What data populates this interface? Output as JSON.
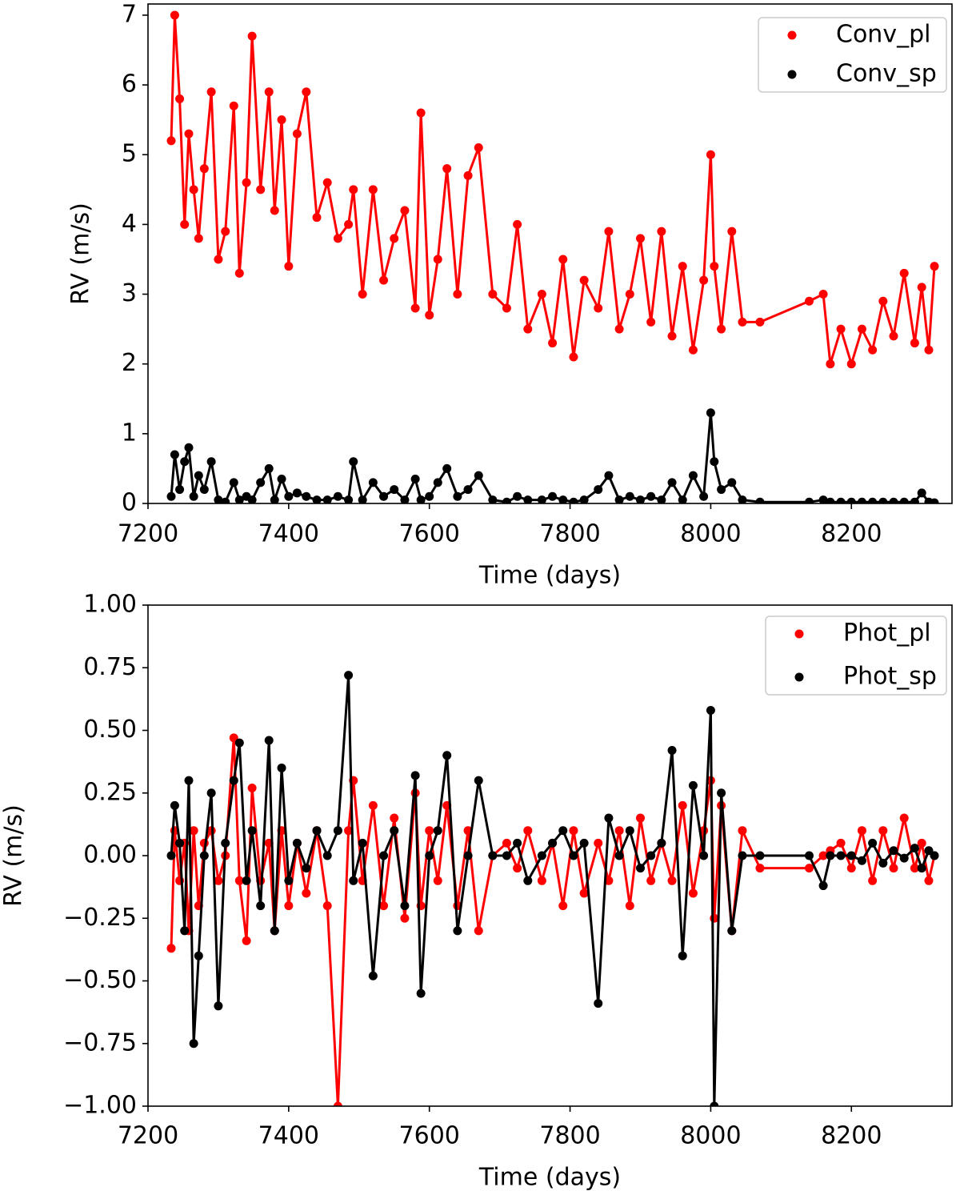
{
  "chart_data": [
    {
      "type": "line",
      "xlabel": "Time (days)",
      "ylabel": "RV (m/s)",
      "x": [
        7233,
        7238,
        7245,
        7252,
        7258,
        7265,
        7272,
        7280,
        7290,
        7300,
        7310,
        7322,
        7330,
        7340,
        7348,
        7360,
        7372,
        7380,
        7390,
        7400,
        7412,
        7425,
        7440,
        7455,
        7470,
        7485,
        7492,
        7505,
        7520,
        7535,
        7550,
        7565,
        7580,
        7588,
        7600,
        7612,
        7625,
        7640,
        7655,
        7670,
        7690,
        7710,
        7725,
        7740,
        7760,
        7775,
        7790,
        7805,
        7820,
        7840,
        7855,
        7870,
        7885,
        7900,
        7915,
        7930,
        7945,
        7960,
        7975,
        7990,
        8000,
        8005,
        8015,
        8030,
        8045,
        8070,
        8140,
        8160,
        8170,
        8185,
        8200,
        8215,
        8230,
        8245,
        8260,
        8275,
        8290,
        8300,
        8310,
        8318
      ],
      "series": [
        {
          "name": "Conv_pl",
          "color": "#ff0000",
          "values": [
            5.2,
            7.0,
            5.8,
            4.0,
            5.3,
            4.5,
            3.8,
            4.8,
            5.9,
            3.5,
            3.9,
            5.7,
            3.3,
            4.6,
            6.7,
            4.5,
            5.9,
            4.2,
            5.5,
            3.4,
            5.3,
            5.9,
            4.1,
            4.6,
            3.8,
            4.0,
            4.5,
            3.0,
            4.5,
            3.2,
            3.8,
            4.2,
            2.8,
            5.6,
            2.7,
            3.5,
            4.8,
            3.0,
            4.7,
            5.1,
            3.0,
            2.8,
            4.0,
            2.5,
            3.0,
            2.3,
            3.5,
            2.1,
            3.2,
            2.8,
            3.9,
            2.5,
            3.0,
            3.8,
            2.6,
            3.9,
            2.4,
            3.4,
            2.2,
            3.2,
            5.0,
            3.4,
            2.5,
            3.9,
            2.6,
            2.6,
            2.9,
            3.0,
            2.0,
            2.5,
            2.0,
            2.5,
            2.2,
            2.9,
            2.4,
            3.3,
            2.3,
            3.1,
            2.2,
            3.4
          ]
        },
        {
          "name": "Conv_sp",
          "color": "#000000",
          "values": [
            0.1,
            0.7,
            0.2,
            0.6,
            0.8,
            0.1,
            0.4,
            0.2,
            0.6,
            0.05,
            0.02,
            0.3,
            0.05,
            0.1,
            0.05,
            0.3,
            0.5,
            0.05,
            0.35,
            0.1,
            0.15,
            0.1,
            0.05,
            0.05,
            0.1,
            0.05,
            0.6,
            0.05,
            0.3,
            0.1,
            0.2,
            0.05,
            0.35,
            0.05,
            0.1,
            0.3,
            0.5,
            0.1,
            0.2,
            0.4,
            0.05,
            0.02,
            0.1,
            0.05,
            0.05,
            0.1,
            0.05,
            0.02,
            0.05,
            0.2,
            0.4,
            0.05,
            0.1,
            0.05,
            0.1,
            0.05,
            0.3,
            0.05,
            0.4,
            0.1,
            1.3,
            0.6,
            0.2,
            0.3,
            0.05,
            0.02,
            0.02,
            0.05,
            0.02,
            0.02,
            0.02,
            0.02,
            0.02,
            0.02,
            0.02,
            0.02,
            0.02,
            0.15,
            0.02,
            0.01
          ]
        }
      ],
      "xlim": [
        7200,
        8343
      ],
      "ylim": [
        0,
        7.16
      ],
      "xticks": [
        7200,
        7400,
        7600,
        7800,
        8000,
        8200
      ],
      "yticks": [
        0,
        1,
        2,
        3,
        4,
        5,
        6,
        7
      ],
      "legend": "upper right"
    },
    {
      "type": "line",
      "xlabel": "Time (days)",
      "ylabel": "RV (m/s)",
      "x": [
        7233,
        7238,
        7245,
        7252,
        7258,
        7265,
        7272,
        7280,
        7290,
        7300,
        7310,
        7322,
        7330,
        7340,
        7348,
        7360,
        7372,
        7380,
        7390,
        7400,
        7412,
        7425,
        7440,
        7455,
        7470,
        7485,
        7492,
        7505,
        7520,
        7535,
        7550,
        7565,
        7580,
        7588,
        7600,
        7612,
        7625,
        7640,
        7655,
        7670,
        7690,
        7710,
        7725,
        7740,
        7760,
        7775,
        7790,
        7805,
        7820,
        7840,
        7855,
        7870,
        7885,
        7900,
        7915,
        7930,
        7945,
        7960,
        7975,
        7990,
        8000,
        8005,
        8015,
        8030,
        8045,
        8070,
        8140,
        8160,
        8170,
        8185,
        8200,
        8215,
        8230,
        8245,
        8260,
        8275,
        8290,
        8300,
        8310,
        8318
      ],
      "series": [
        {
          "name": "Phot_pl",
          "color": "#ff0000",
          "values": [
            -0.37,
            0.1,
            -0.1,
            0.05,
            -0.3,
            0.1,
            -0.2,
            0.05,
            0.1,
            -0.1,
            0.0,
            0.47,
            -0.1,
            -0.34,
            0.27,
            -0.1,
            0.05,
            -0.3,
            0.1,
            -0.2,
            0.05,
            -0.15,
            0.1,
            -0.2,
            -1.0,
            0.1,
            0.3,
            -0.1,
            0.2,
            -0.2,
            0.15,
            -0.25,
            0.25,
            -0.2,
            0.1,
            -0.1,
            0.2,
            -0.2,
            0.1,
            -0.3,
            0.0,
            0.05,
            -0.05,
            0.1,
            -0.1,
            0.05,
            -0.2,
            0.1,
            -0.15,
            0.05,
            -0.1,
            0.1,
            -0.2,
            0.15,
            -0.1,
            0.05,
            -0.1,
            0.2,
            -0.15,
            0.1,
            0.3,
            -0.25,
            0.2,
            -0.3,
            0.1,
            -0.05,
            -0.05,
            0.0,
            0.02,
            0.05,
            -0.05,
            0.1,
            -0.1,
            0.1,
            -0.05,
            0.15,
            -0.05,
            0.05,
            -0.1,
            0.0
          ]
        },
        {
          "name": "Phot_sp",
          "color": "#000000",
          "values": [
            0.0,
            0.2,
            0.05,
            -0.3,
            0.3,
            -0.75,
            -0.4,
            0.0,
            0.25,
            -0.6,
            0.05,
            0.3,
            0.45,
            -0.1,
            0.1,
            -0.2,
            0.46,
            -0.3,
            0.35,
            -0.1,
            0.05,
            -0.05,
            0.1,
            0.0,
            0.1,
            0.72,
            -0.1,
            0.05,
            -0.48,
            0.0,
            0.1,
            -0.2,
            0.32,
            -0.55,
            0.0,
            0.1,
            0.4,
            -0.3,
            0.0,
            0.3,
            0.0,
            0.0,
            0.05,
            -0.1,
            0.0,
            0.05,
            0.1,
            0.0,
            0.05,
            -0.59,
            0.15,
            0.0,
            0.1,
            -0.05,
            0.0,
            0.05,
            0.42,
            -0.4,
            0.28,
            0.0,
            0.58,
            -1.0,
            0.25,
            -0.3,
            0.0,
            0.0,
            0.0,
            -0.12,
            0.0,
            0.0,
            0.0,
            -0.02,
            0.05,
            -0.03,
            0.02,
            -0.01,
            0.03,
            -0.05,
            0.02,
            0.0
          ]
        }
      ],
      "xlim": [
        7200,
        8343
      ],
      "ylim": [
        -1,
        1
      ],
      "xticks": [
        7200,
        7400,
        7600,
        7800,
        8000,
        8200
      ],
      "yticks": [
        {
          "value": -1,
          "label": "−1.00"
        },
        {
          "value": -0.75,
          "label": "−0.75"
        },
        {
          "value": -0.5,
          "label": "−0.50"
        },
        {
          "value": -0.25,
          "label": "−0.25"
        },
        {
          "value": 0,
          "label": "0.00"
        },
        {
          "value": 0.25,
          "label": "0.25"
        },
        {
          "value": 0.5,
          "label": "0.50"
        },
        {
          "value": 0.75,
          "label": "0.75"
        },
        {
          "value": 1,
          "label": "1.00"
        }
      ],
      "legend": "upper right"
    }
  ]
}
